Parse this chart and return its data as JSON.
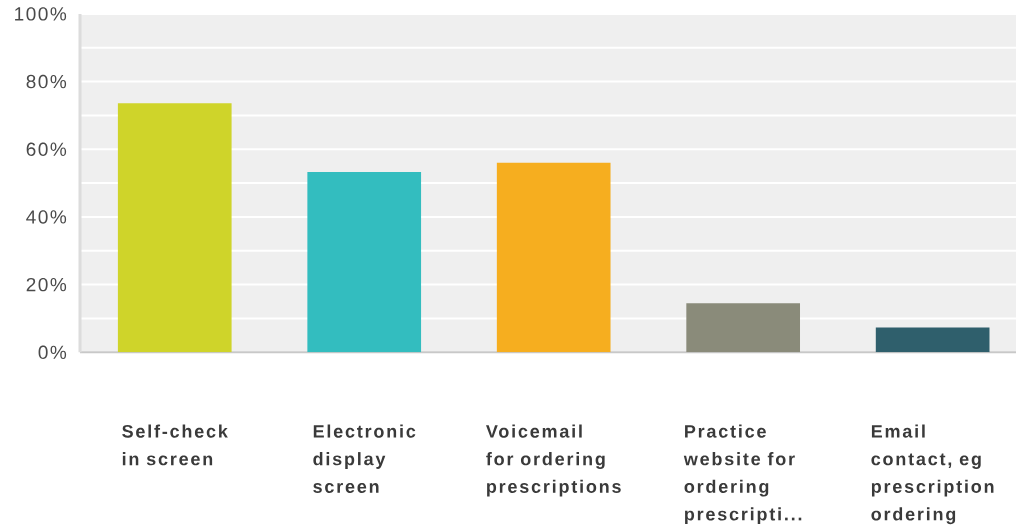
{
  "chart_data": {
    "type": "bar",
    "categories": [
      "Self-check\nin screen",
      "Electronic\ndisplay\nscreen",
      "Voicemail\nfor ordering\nprescriptions",
      "Practice\nwebsite for\nordering\nprescripti...",
      "Email\ncontact, eg\nprescription\nordering"
    ],
    "values": [
      73.6,
      53.3,
      56,
      14.5,
      7.3
    ],
    "colors": [
      "#cfd42a",
      "#33bdbf",
      "#f6ae1f",
      "#8a8b7a",
      "#2f5f6c"
    ],
    "ylim": [
      0,
      100
    ],
    "yticks": [
      {
        "value": 0,
        "label": "0%"
      },
      {
        "value": 10,
        "label": null
      },
      {
        "value": 20,
        "label": "20%"
      },
      {
        "value": 30,
        "label": null
      },
      {
        "value": 40,
        "label": "40%"
      },
      {
        "value": 50,
        "label": null
      },
      {
        "value": 60,
        "label": "60%"
      },
      {
        "value": 70,
        "label": null
      },
      {
        "value": 80,
        "label": "80%"
      },
      {
        "value": 90,
        "label": null
      },
      {
        "value": 100,
        "label": "100%"
      }
    ],
    "grid": "y"
  }
}
